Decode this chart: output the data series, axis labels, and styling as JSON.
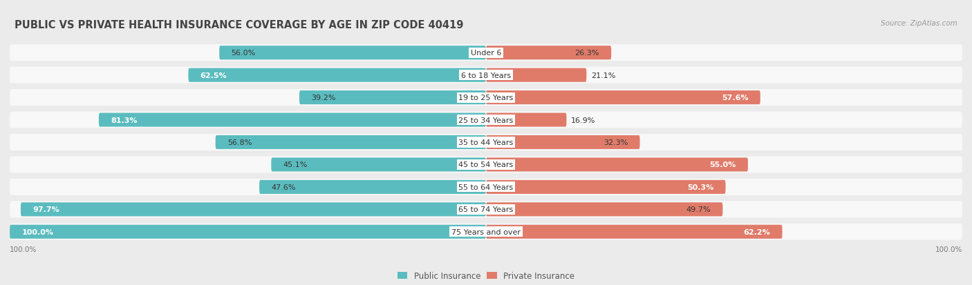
{
  "title": "PUBLIC VS PRIVATE HEALTH INSURANCE COVERAGE BY AGE IN ZIP CODE 40419",
  "source": "Source: ZipAtlas.com",
  "categories": [
    "Under 6",
    "6 to 18 Years",
    "19 to 25 Years",
    "25 to 34 Years",
    "35 to 44 Years",
    "45 to 54 Years",
    "55 to 64 Years",
    "65 to 74 Years",
    "75 Years and over"
  ],
  "public_values": [
    56.0,
    62.5,
    39.2,
    81.3,
    56.8,
    45.1,
    47.6,
    97.7,
    100.0
  ],
  "private_values": [
    26.3,
    21.1,
    57.6,
    16.9,
    32.3,
    55.0,
    50.3,
    49.7,
    62.2
  ],
  "public_color": "#5bbcbf",
  "private_color": "#e07b6a",
  "background_color": "#ebebeb",
  "bar_background": "#f8f8f8",
  "bar_height": 0.62,
  "max_value": 100.0,
  "title_fontsize": 10.5,
  "label_fontsize": 8.0,
  "category_fontsize": 8.0,
  "legend_fontsize": 8.5,
  "source_fontsize": 7.5,
  "axis_label_fontsize": 7.5
}
